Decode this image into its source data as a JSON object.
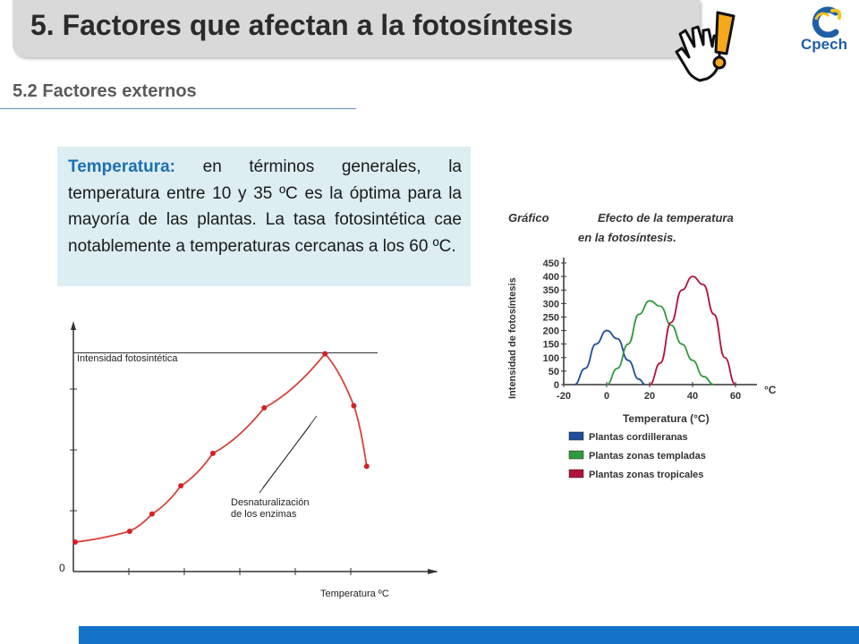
{
  "header": {
    "title": "5. Factores que afectan a la fotosíntesis",
    "logo_text": "Cpech"
  },
  "section": {
    "subtitle": "5.2 Factores externos"
  },
  "textbox": {
    "term": "Temperatura:",
    "body": " en términos generales, la temperatura entre 10 y 35 ºC es la óptima para la mayoría de las plantas. La tasa fotosintética cae notablemente a temperaturas cercanas a los 60 ºC."
  },
  "chart_data": [
    {
      "type": "line",
      "ylabel": "Intensidad fotosintética",
      "xlabel": "Temperatura ºC",
      "y_origin_label": "0",
      "annotation": "Desnaturalización\nde los enzimas",
      "points_relative": [
        {
          "x": 0.0,
          "y": 0.07
        },
        {
          "x": 0.17,
          "y": 0.12
        },
        {
          "x": 0.24,
          "y": 0.2
        },
        {
          "x": 0.33,
          "y": 0.33
        },
        {
          "x": 0.43,
          "y": 0.48
        },
        {
          "x": 0.59,
          "y": 0.69
        },
        {
          "x": 0.78,
          "y": 0.94
        },
        {
          "x": 0.87,
          "y": 0.7
        },
        {
          "x": 0.91,
          "y": 0.42
        }
      ],
      "colors": {
        "line": "#d8423a",
        "points": "#d42027"
      }
    },
    {
      "type": "line",
      "title_left": "Gráfico",
      "title": "Efecto de la temperatura en la fotosíntesis.",
      "ylabel": "Intensidad de fotosíntesis",
      "xlabel": "Temperatura (°C)",
      "x_unit": "°C",
      "xlim": [
        -20,
        60
      ],
      "ylim": [
        0,
        450
      ],
      "x_ticks": [
        -20,
        0,
        20,
        40,
        60
      ],
      "y_ticks": [
        0,
        50,
        100,
        150,
        200,
        250,
        300,
        350,
        400,
        450
      ],
      "series": [
        {
          "name": "Plantas cordilleranas",
          "color": "#1f4e9c",
          "x": [
            -15,
            -10,
            -5,
            0,
            5,
            10,
            15,
            18
          ],
          "values": [
            0,
            60,
            150,
            200,
            170,
            90,
            20,
            0
          ]
        },
        {
          "name": "Plantas zonas templadas",
          "color": "#2f9a3f",
          "x": [
            0,
            5,
            10,
            15,
            20,
            25,
            30,
            35,
            40,
            45,
            50
          ],
          "values": [
            0,
            60,
            150,
            260,
            310,
            290,
            220,
            150,
            90,
            30,
            0
          ]
        },
        {
          "name": "Plantas zonas tropicales",
          "color": "#b3123b",
          "x": [
            20,
            25,
            30,
            35,
            40,
            45,
            50,
            55,
            60
          ],
          "values": [
            0,
            80,
            230,
            350,
            400,
            370,
            260,
            100,
            0
          ]
        }
      ],
      "legend_position": "bottom-left"
    }
  ]
}
